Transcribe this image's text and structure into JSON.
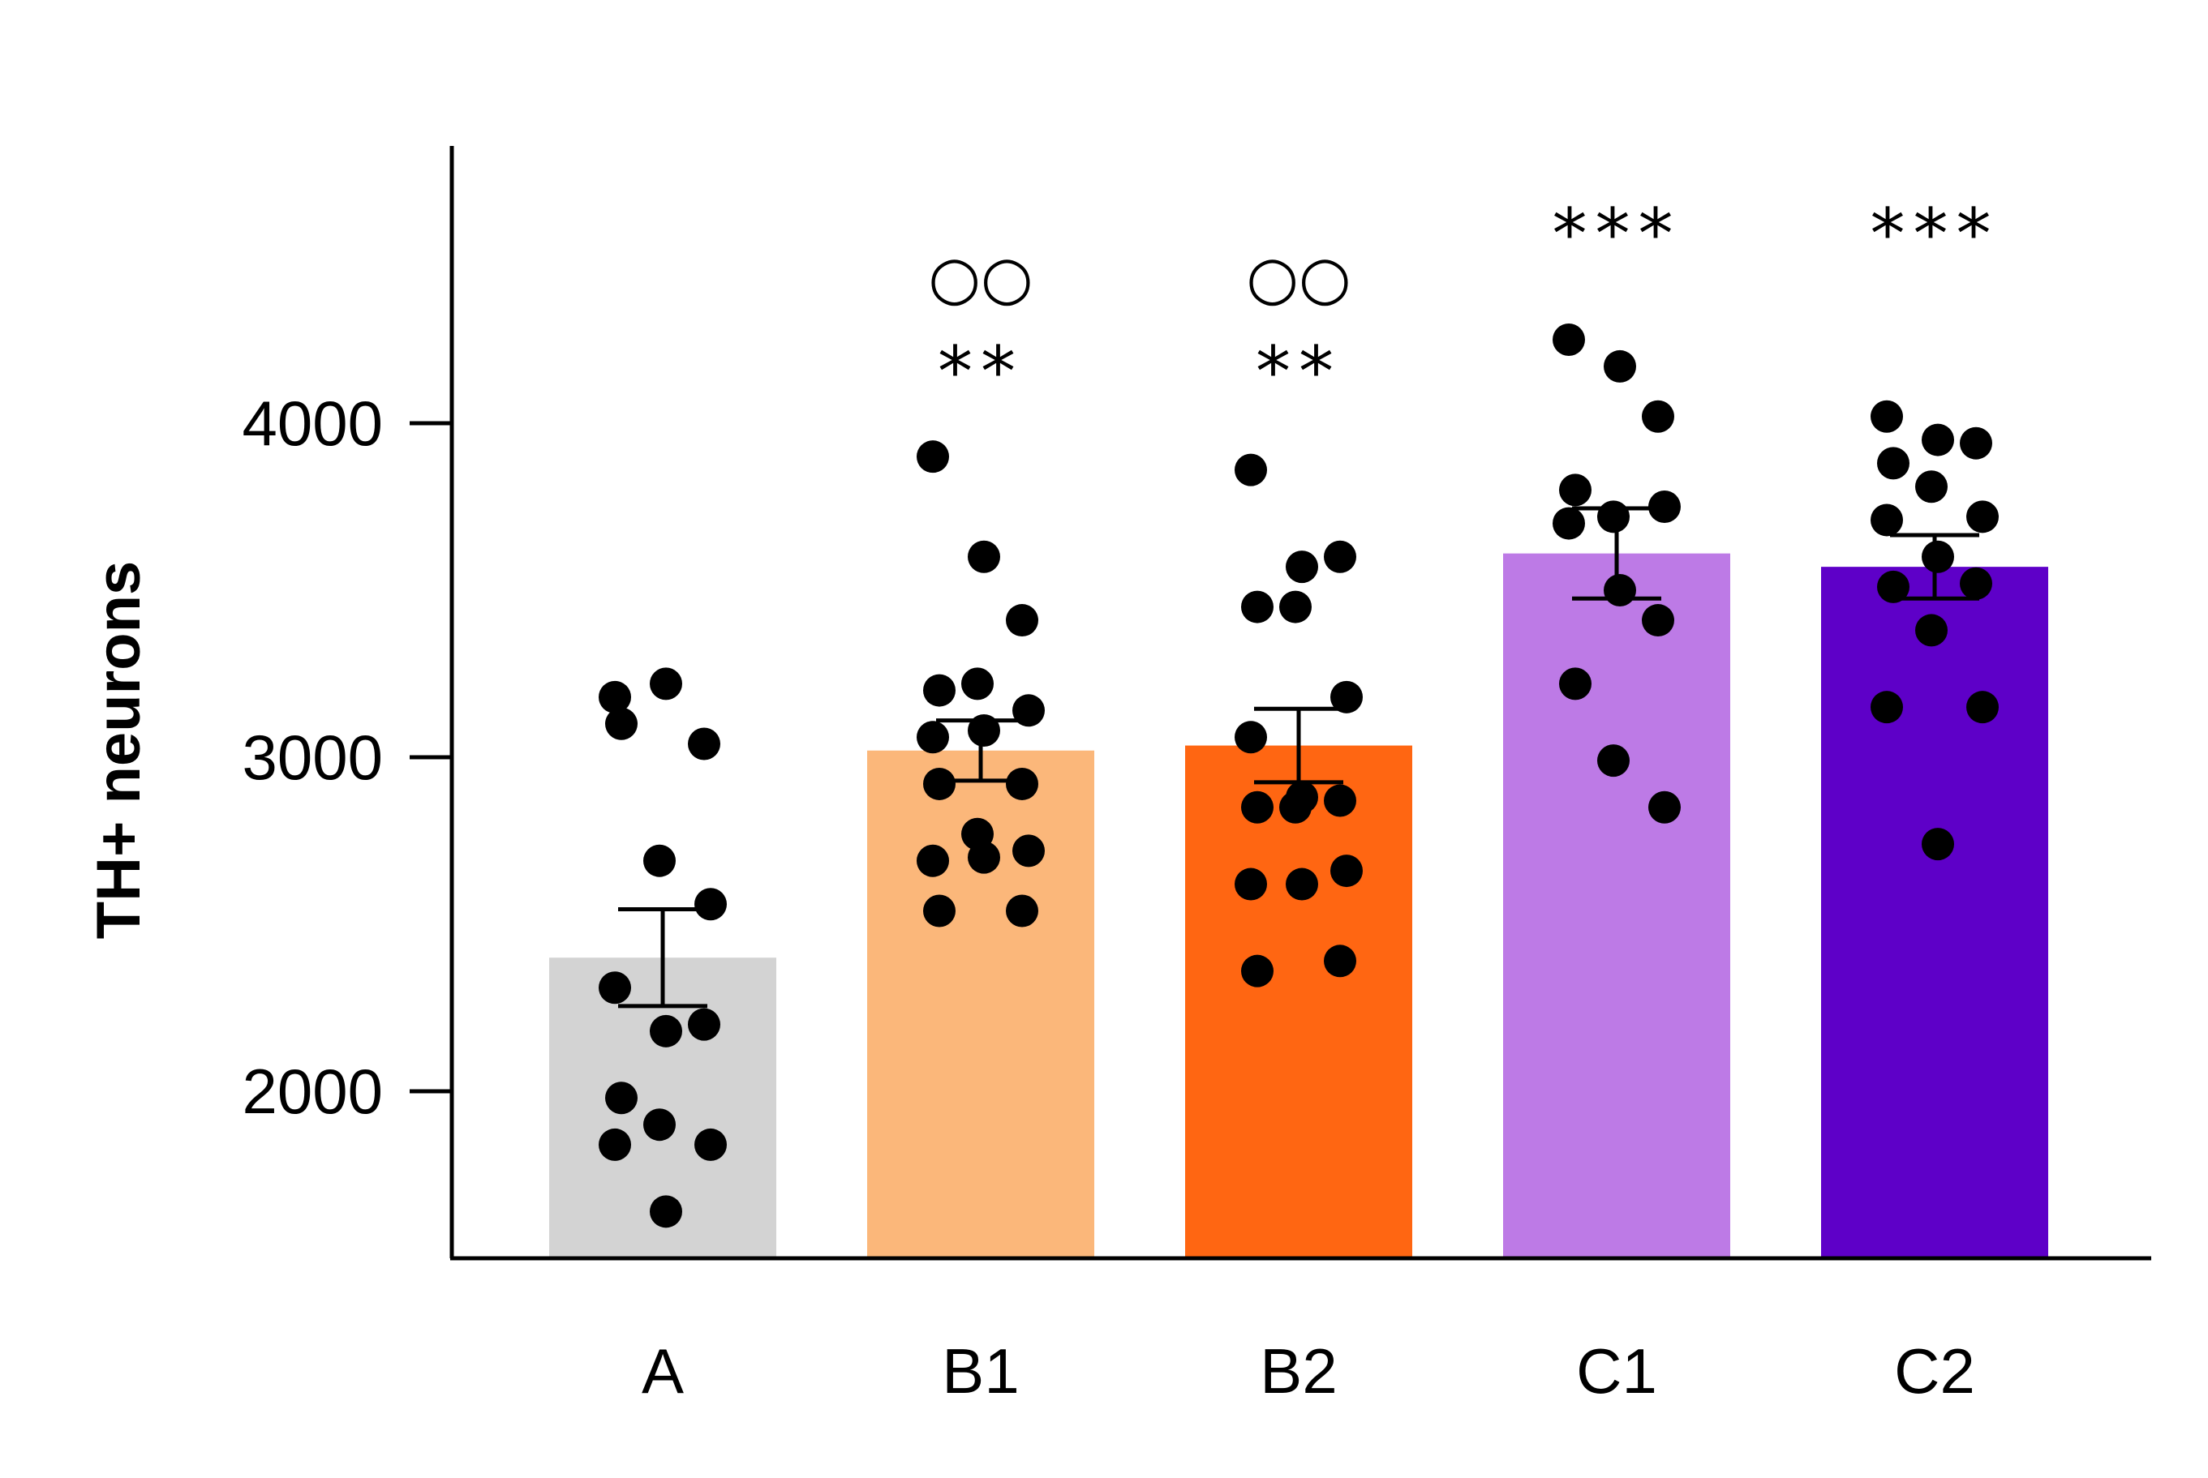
{
  "chart_data": {
    "type": "bar",
    "ylabel": "TH+ neurons",
    "xlabel": "",
    "title": "",
    "ylim": [
      1500,
      4830
    ],
    "yticks": [
      2000,
      3000,
      4000
    ],
    "categories": [
      "A",
      "B1",
      "B2",
      "C1",
      "C2"
    ],
    "colors": [
      "#d3d3d3",
      "#fbb77a",
      "#ff6612",
      "#bd7ae6",
      "#5e00c8"
    ],
    "means": [
      2400,
      3020,
      3035,
      3610,
      3570
    ],
    "sem": [
      145,
      90,
      110,
      135,
      95
    ],
    "annotations": [
      {
        "category": "A",
        "stars": "",
        "circles": ""
      },
      {
        "category": "B1",
        "stars": "**",
        "circles": "○○"
      },
      {
        "category": "B2",
        "stars": "**",
        "circles": "○○"
      },
      {
        "category": "C1",
        "stars": "***",
        "circles": ""
      },
      {
        "category": "C2",
        "stars": "***",
        "circles": ""
      }
    ],
    "points": [
      [
        3180,
        3220,
        3040,
        3100,
        2690,
        2560,
        2310,
        2180,
        2200,
        1980,
        1900,
        1840,
        1840,
        1640
      ],
      [
        3900,
        3600,
        3410,
        3200,
        3220,
        3140,
        3060,
        3080,
        2920,
        2920,
        2770,
        2720,
        2690,
        2700,
        2540,
        2540
      ],
      [
        3860,
        3570,
        3600,
        3450,
        3450,
        3180,
        3060,
        2880,
        2870,
        2850,
        2850,
        2660,
        2620,
        2620,
        2390,
        2360
      ],
      [
        4250,
        4170,
        4020,
        3800,
        3720,
        3750,
        3700,
        3500,
        3410,
        3220,
        2990,
        2850
      ],
      [
        4020,
        3950,
        3940,
        3880,
        3810,
        3720,
        3710,
        3600,
        3520,
        3510,
        3380,
        3150,
        3150,
        2740
      ]
    ]
  }
}
